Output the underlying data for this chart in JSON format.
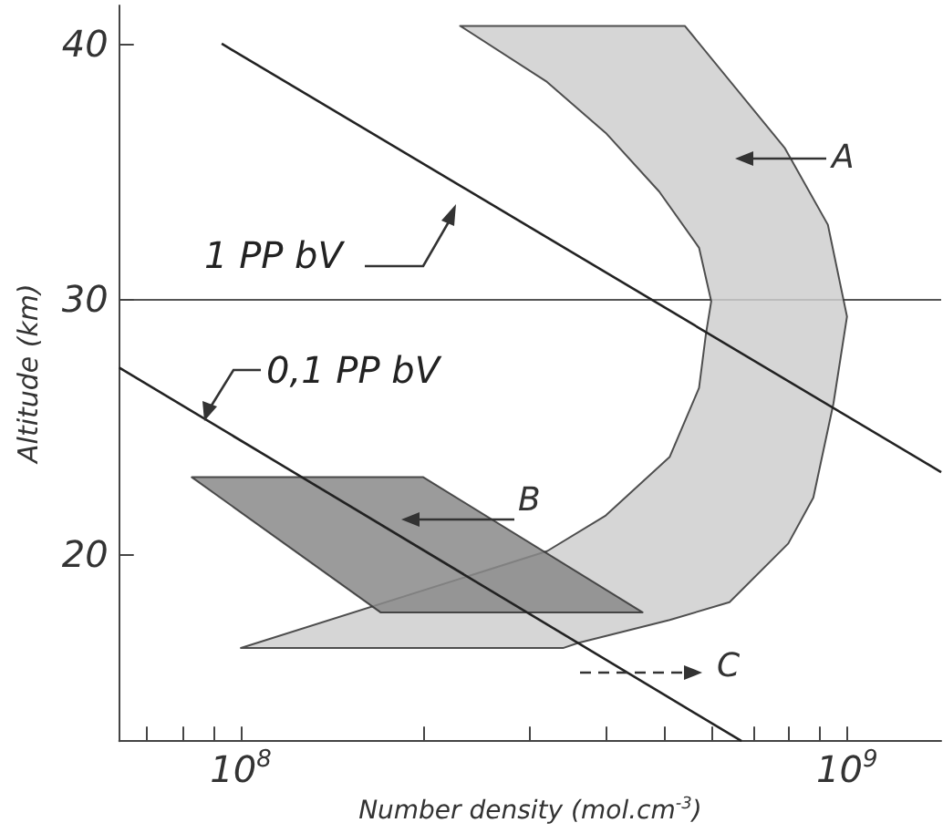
{
  "chart_data": {
    "type": "line",
    "xlabel": "Number density (mol.cm$^{-3}$)",
    "ylabel": "Altitude (km)",
    "xlim": [
      63000000,
      1430000000
    ],
    "ylim": [
      12.65,
      41.5
    ],
    "log": "x",
    "grid": "y",
    "legend": false,
    "xticks": [
      {
        "value": 70000000,
        "label": null
      },
      {
        "value": 80000000,
        "label": null
      },
      {
        "value": 90000000,
        "label": null
      },
      {
        "value": 100000000,
        "label": "10$^{8}$"
      },
      {
        "value": 200000000,
        "label": null
      },
      {
        "value": 300000000,
        "label": null
      },
      {
        "value": 400000000,
        "label": null
      },
      {
        "value": 500000000,
        "label": null
      },
      {
        "value": 600000000,
        "label": null
      },
      {
        "value": 700000000,
        "label": null
      },
      {
        "value": 800000000,
        "label": null
      },
      {
        "value": 900000000,
        "label": null
      },
      {
        "value": 1000000000,
        "label": "10$^{9}$"
      }
    ],
    "yticks": [
      20,
      30,
      40
    ],
    "series": [
      {
        "type": "area",
        "color": "#cfcfcf",
        "x": [
          230000000,
          540000000,
          790000000,
          930000000,
          1000000000,
          950000000,
          880000000,
          800000000,
          640000000,
          510000000,
          360000000,
          340000000,
          100000000,
          320000000,
          400000000,
          510000000,
          570000000,
          585000000,
          597000000,
          570000000,
          490000000,
          400000000,
          320000000
        ],
        "values": [
          40.7,
          40.7,
          35.9,
          32.9,
          29.3,
          25.9,
          22.2,
          20.4,
          18.1,
          17.4,
          16.5,
          16.3,
          16.3,
          20.1,
          21.5,
          23.8,
          26.5,
          28.6,
          29.9,
          32.0,
          34.2,
          36.5,
          38.5
        ]
      },
      {
        "type": "area",
        "color": "#8a8a8a",
        "x": [
          83000000,
          200000000,
          460000000,
          170000000
        ],
        "values": [
          23.0,
          23.0,
          17.7,
          17.7
        ]
      },
      {
        "name": "1 PP bV",
        "color": "#222222",
        "x": [
          93000000,
          1430000000
        ],
        "values": [
          40,
          23.2
        ]
      },
      {
        "name": "0,1 PP bV",
        "color": "#222222",
        "x": [
          63000000,
          670000000
        ],
        "values": [
          27.3,
          12.65
        ]
      }
    ],
    "annotations": [
      "A",
      "B",
      "C"
    ]
  }
}
